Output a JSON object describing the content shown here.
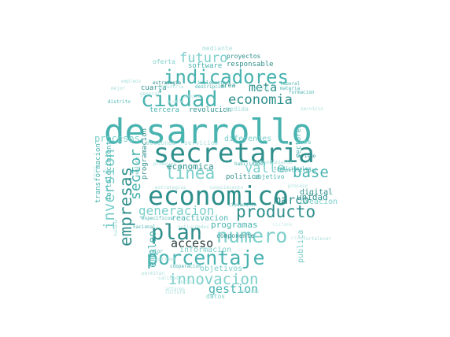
{
  "palette": {
    "dark": "#2f8f8c",
    "mid": "#49b3b0",
    "light": "#7ccfcb",
    "pale": "#a9dfdc",
    "faint": "#cfecea",
    "ink": "#2c3e3d"
  },
  "words": [
    {
      "text": "desarrollo",
      "color": "mid"
    },
    {
      "text": "secretaria",
      "color": "dark"
    },
    {
      "text": "economico",
      "color": "dark"
    },
    {
      "text": "ciudad",
      "color": "mid"
    },
    {
      "text": "indicadores",
      "color": "mid"
    },
    {
      "text": "numero",
      "color": "light"
    },
    {
      "text": "porcentaje",
      "color": "mid"
    },
    {
      "text": "plan",
      "color": "dark"
    },
    {
      "text": "producto",
      "color": "dark"
    },
    {
      "text": "empresas",
      "color": "dark"
    },
    {
      "text": "linea",
      "color": "light"
    },
    {
      "text": "base",
      "color": "mid"
    },
    {
      "text": "innovacion",
      "color": "light"
    },
    {
      "text": "economia",
      "color": "dark"
    },
    {
      "text": "futuro",
      "color": "light"
    },
    {
      "text": "valle",
      "color": "light"
    },
    {
      "text": "meta",
      "color": "dark"
    },
    {
      "text": "inversion",
      "color": "light"
    },
    {
      "text": "generacion",
      "color": "light"
    },
    {
      "text": "marco",
      "color": "dark"
    },
    {
      "text": "acceso",
      "color": "ink"
    },
    {
      "text": "sector",
      "color": "mid"
    },
    {
      "text": "gestion",
      "color": "mid"
    },
    {
      "text": "empleo",
      "color": "mid"
    },
    {
      "text": "procesos",
      "color": "light"
    },
    {
      "text": "programas",
      "color": "mid"
    },
    {
      "text": "unidad",
      "color": "dark"
    },
    {
      "text": "publica",
      "color": "light"
    },
    {
      "text": "diferentes",
      "color": "light"
    },
    {
      "text": "economica",
      "color": "dark"
    },
    {
      "text": "reactivacion",
      "color": "mid"
    },
    {
      "text": "informacion",
      "color": "light"
    },
    {
      "text": "objetivos",
      "color": "light"
    },
    {
      "text": "digital",
      "color": "dark"
    },
    {
      "text": "creacion",
      "color": "light"
    },
    {
      "text": "sectores",
      "color": "mid"
    },
    {
      "text": "tercera",
      "color": "mid"
    },
    {
      "text": "revolucion",
      "color": "dark"
    },
    {
      "text": "cuarta",
      "color": "dark"
    },
    {
      "text": "responsable",
      "color": "dark"
    },
    {
      "text": "software",
      "color": "mid"
    },
    {
      "text": "proyectos",
      "color": "dark"
    },
    {
      "text": "oferta",
      "color": "light"
    },
    {
      "text": "mediante",
      "color": "pale"
    },
    {
      "text": "area",
      "color": "dark"
    },
    {
      "text": "medida",
      "color": "pale"
    },
    {
      "text": "transformacion",
      "color": "mid"
    },
    {
      "text": "fortalecimiento",
      "color": "mid"
    },
    {
      "text": "acciones",
      "color": "pale"
    },
    {
      "text": "servicios",
      "color": "pale"
    },
    {
      "text": "politica",
      "color": "dark"
    },
    {
      "text": "objetivo",
      "color": "mid"
    },
    {
      "text": "programacion",
      "color": "dark"
    },
    {
      "text": "ruta",
      "color": "light"
    },
    {
      "text": "datos",
      "color": "light"
    },
    {
      "text": "componente",
      "color": "dark"
    },
    {
      "text": "ciudadania",
      "color": "mid"
    },
    {
      "text": "cooperacion",
      "color": "mid"
    },
    {
      "text": "turismo",
      "color": "dark"
    },
    {
      "text": "competitividad",
      "color": "mid"
    },
    {
      "text": "emprendimiento",
      "color": "pale"
    },
    {
      "text": "formacion",
      "color": "mid"
    },
    {
      "text": "materia",
      "color": "mid"
    },
    {
      "text": "laboral",
      "color": "mid"
    },
    {
      "text": "general",
      "color": "pale"
    },
    {
      "text": "distrito",
      "color": "mid"
    },
    {
      "text": "estrategia",
      "color": "dark"
    },
    {
      "text": "implementar",
      "color": "mid"
    },
    {
      "text": "industria",
      "color": "pale"
    },
    {
      "text": "descripcion",
      "color": "mid"
    },
    {
      "text": "empleos",
      "color": "pale"
    },
    {
      "text": "servicio",
      "color": "pale"
    },
    {
      "text": "promover",
      "color": "pale"
    },
    {
      "text": "habilidades",
      "color": "mid"
    },
    {
      "text": "publico",
      "color": "mid"
    },
    {
      "text": "estrategias",
      "color": "pale"
    },
    {
      "text": "conocimiento",
      "color": "pale"
    },
    {
      "text": "actividades",
      "color": "pale"
    },
    {
      "text": "tradicionales",
      "color": "mid"
    },
    {
      "text": "fortalecer",
      "color": "pale"
    },
    {
      "text": "valor",
      "color": "mid"
    },
    {
      "text": "especificos",
      "color": "mid"
    },
    {
      "text": "permitan",
      "color": "pale"
    },
    {
      "text": "calidad",
      "color": "pale"
    },
    {
      "text": "actores",
      "color": "pale"
    },
    {
      "text": "cultura",
      "color": "pale"
    },
    {
      "text": "mercado",
      "color": "pale"
    },
    {
      "text": "nacional",
      "color": "mid"
    },
    {
      "text": "humano",
      "color": "pale"
    },
    {
      "text": "municipal",
      "color": "pale"
    },
    {
      "text": "nivel",
      "color": "faint"
    },
    {
      "text": "social",
      "color": "pale"
    },
    {
      "text": "obras",
      "color": "pale"
    },
    {
      "text": "mejor",
      "color": "pale"
    },
    {
      "text": "ambito",
      "color": "pale"
    },
    {
      "text": "proceso",
      "color": "pale"
    },
    {
      "text": "sistema",
      "color": "faint"
    },
    {
      "text": "modelo",
      "color": "faint"
    },
    {
      "text": "mayor",
      "color": "faint"
    },
    {
      "text": "agenda",
      "color": "faint"
    }
  ]
}
